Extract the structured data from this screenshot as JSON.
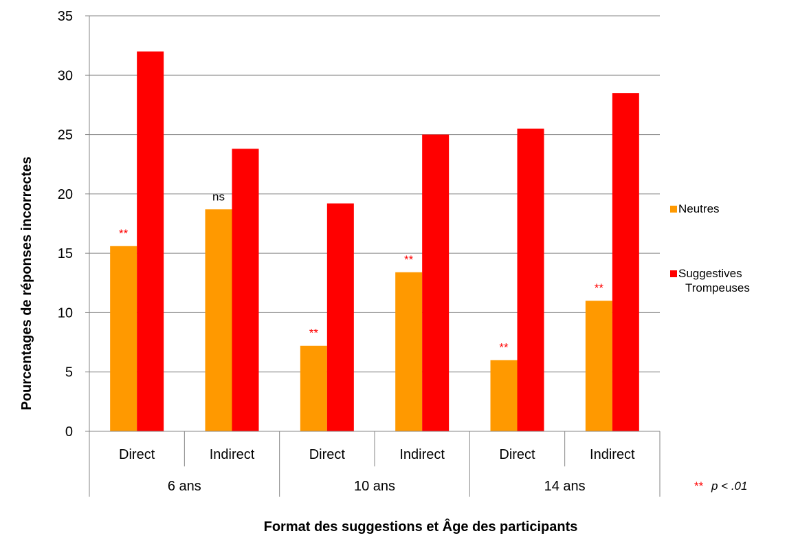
{
  "chart_data": {
    "type": "bar",
    "ylabel": "Pourcentages de réponses incorrectes",
    "xlabel": "Format des suggestions et Âge des participants",
    "ylim": [
      0,
      35
    ],
    "yticks": [
      0,
      5,
      10,
      15,
      20,
      25,
      30,
      35
    ],
    "grid": true,
    "legend_position": "right",
    "categories": [
      "Direct",
      "Indirect",
      "Direct",
      "Indirect",
      "Direct",
      "Indirect"
    ],
    "groups": [
      {
        "label": "6 ans",
        "categories": [
          "Direct",
          "Indirect"
        ]
      },
      {
        "label": "10 ans",
        "categories": [
          "Direct",
          "Indirect"
        ]
      },
      {
        "label": "14 ans",
        "categories": [
          "Direct",
          "Indirect"
        ]
      }
    ],
    "series": [
      {
        "name": "Neutres",
        "color": "#FF9900",
        "values": [
          15.6,
          18.7,
          7.2,
          13.4,
          6.0,
          11.0
        ]
      },
      {
        "name": "Suggestives Trompeuses",
        "color": "#FF0000",
        "values": [
          32.0,
          23.8,
          19.2,
          25.0,
          25.5,
          28.5
        ]
      }
    ],
    "annotations": [
      "**",
      "ns",
      "**",
      "**",
      "**",
      "**"
    ],
    "annotation_colors": [
      "#FF0000",
      "#000000",
      "#FF0000",
      "#FF0000",
      "#FF0000",
      "#FF0000"
    ],
    "note": {
      "stars": "**",
      "text": "p < .01"
    }
  }
}
